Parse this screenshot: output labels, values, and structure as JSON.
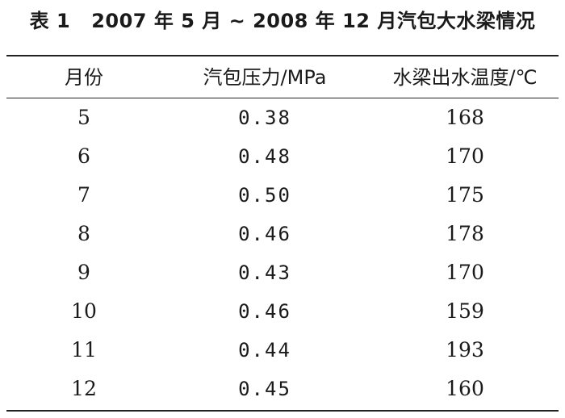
{
  "caption": {
    "number": "表 1",
    "text": "2007 年 5 月 ~ 2008 年 12 月汽包大水梁情况"
  },
  "table": {
    "columns": [
      "月份",
      "汽包压力/MPa",
      "水梁出水温度/℃"
    ],
    "rows": [
      [
        "5",
        "0.38",
        "168"
      ],
      [
        "6",
        "0.48",
        "170"
      ],
      [
        "7",
        "0.50",
        "175"
      ],
      [
        "8",
        "0.46",
        "178"
      ],
      [
        "9",
        "0.43",
        "170"
      ],
      [
        "10",
        "0.46",
        "159"
      ],
      [
        "11",
        "0.44",
        "193"
      ],
      [
        "12",
        "0.45",
        "160"
      ]
    ]
  }
}
